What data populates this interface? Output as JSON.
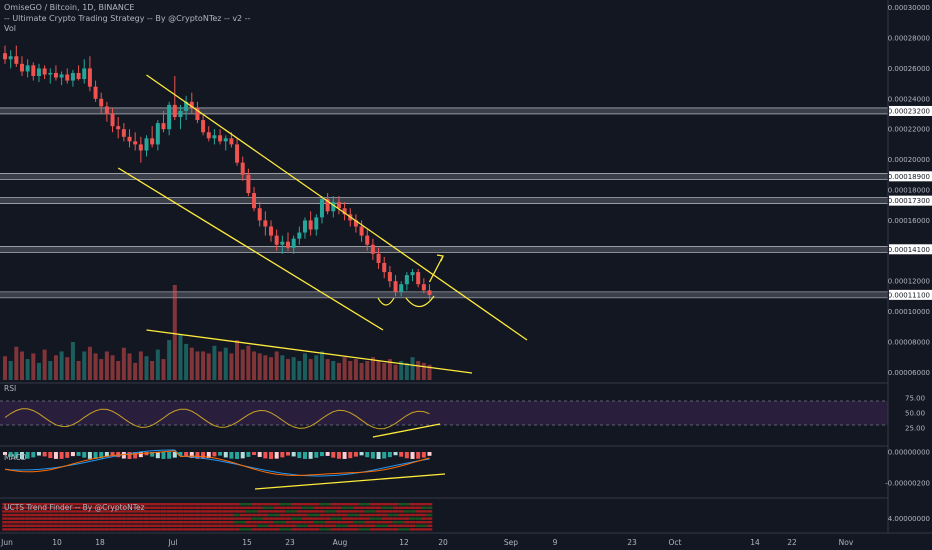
{
  "header": {
    "title": "OmiseGO / Bitcoin, 1D, BINANCE",
    "strategy": "-- Ultimate Crypto Trading Strategy -- By @CryptoNTez -- v2 --",
    "vol": "Vol"
  },
  "panels": {
    "rsi": "RSI",
    "macd": "MACD",
    "trend": "UCTS Trend Finder -- By @CryptoNTez"
  },
  "colors": {
    "background": "#131722",
    "up": "#26a69a",
    "down": "#ef5350",
    "trendline": "#ffeb3b",
    "level_band": "#5d606b",
    "rsi_fill": "#2a1e3d"
  },
  "chart_data": {
    "type": "candlestick",
    "symbol": "OmiseGO / Bitcoin",
    "interval": "1D",
    "exchange": "BINANCE",
    "price_axis": {
      "ticks": [
        "0.00030000",
        "0.00028000",
        "0.00026000",
        "0.00024000",
        "0.00022000",
        "0.00020000",
        "0.00018000",
        "0.00016000",
        "0.00012000",
        "0.00010000",
        "0.00008000",
        "0.00006000"
      ],
      "ylim": [
        5.5e-05,
        0.000305
      ]
    },
    "level_labels": [
      "0.00023200",
      "0.00018900",
      "0.00017300",
      "0.00014100",
      "0.00011100"
    ],
    "levels": [
      0.000232,
      0.000189,
      0.000173,
      0.000141,
      0.000111
    ],
    "x_ticks": [
      "Jun",
      "10",
      "18",
      "Jul",
      "15",
      "23",
      "Aug",
      "12",
      "20",
      "Sep",
      "9",
      "23",
      "Oct",
      "14",
      "22",
      "Nov"
    ],
    "rsi": {
      "ticks": [
        "75.00",
        "50.00",
        "25.00"
      ],
      "upper": 70,
      "lower": 30
    },
    "macd": {
      "ticks": [
        "0.00000000",
        "-0.00000200"
      ]
    },
    "trend": {
      "ticks": [
        "4.00000000"
      ]
    },
    "candles": [
      [
        0.00027,
        0.000275,
        0.000263,
        0.000266
      ],
      [
        0.000266,
        0.000272,
        0.00026,
        0.000268
      ],
      [
        0.000268,
        0.000275,
        0.000261,
        0.000263
      ],
      [
        0.000263,
        0.000268,
        0.000255,
        0.000258
      ],
      [
        0.000258,
        0.000266,
        0.000254,
        0.000262
      ],
      [
        0.000262,
        0.000264,
        0.000252,
        0.000255
      ],
      [
        0.000255,
        0.000263,
        0.000251,
        0.00026
      ],
      [
        0.00026,
        0.000262,
        0.000253,
        0.000256
      ],
      [
        0.000256,
        0.00026,
        0.00025,
        0.000257
      ],
      [
        0.000257,
        0.000262,
        0.000252,
        0.000254
      ],
      [
        0.000254,
        0.000258,
        0.000249,
        0.000256
      ],
      [
        0.000256,
        0.00026,
        0.00025,
        0.000252
      ],
      [
        0.000252,
        0.000259,
        0.000248,
        0.000257
      ],
      [
        0.000257,
        0.000262,
        0.000252,
        0.000253
      ],
      [
        0.000253,
        0.000266,
        0.00025,
        0.00026
      ],
      [
        0.00026,
        0.000268,
        0.000245,
        0.000248
      ],
      [
        0.000248,
        0.000252,
        0.000238,
        0.00024
      ],
      [
        0.00024,
        0.000244,
        0.00023,
        0.000235
      ],
      [
        0.000235,
        0.000238,
        0.000225,
        0.00023
      ],
      [
        0.00023,
        0.000234,
        0.000218,
        0.000222
      ],
      [
        0.000222,
        0.000228,
        0.000214,
        0.00022
      ],
      [
        0.00022,
        0.000224,
        0.000212,
        0.000215
      ],
      [
        0.000215,
        0.00022,
        0.000208,
        0.000212
      ],
      [
        0.000212,
        0.000218,
        0.000206,
        0.00021
      ],
      [
        0.00021,
        0.000215,
        0.000198,
        0.000206
      ],
      [
        0.000206,
        0.000216,
        0.000202,
        0.000214
      ],
      [
        0.000214,
        0.000222,
        0.000208,
        0.00021
      ],
      [
        0.00021,
        0.000226,
        0.000206,
        0.000224
      ],
      [
        0.000224,
        0.000232,
        0.000218,
        0.00022
      ],
      [
        0.00022,
        0.000238,
        0.000216,
        0.000236
      ],
      [
        0.000236,
        0.000255,
        0.000226,
        0.000228
      ],
      [
        0.000228,
        0.000236,
        0.00022,
        0.000232
      ],
      [
        0.000232,
        0.000242,
        0.000226,
        0.000238
      ],
      [
        0.000238,
        0.000244,
        0.00023,
        0.000234
      ],
      [
        0.000234,
        0.000238,
        0.000224,
        0.000226
      ],
      [
        0.000226,
        0.00023,
        0.000216,
        0.000218
      ],
      [
        0.000218,
        0.000222,
        0.000212,
        0.000214
      ],
      [
        0.000214,
        0.00022,
        0.00021,
        0.000216
      ],
      [
        0.000216,
        0.00022,
        0.00021,
        0.000212
      ],
      [
        0.000212,
        0.000216,
        0.000206,
        0.000214
      ],
      [
        0.000214,
        0.000218,
        0.000208,
        0.00021
      ],
      [
        0.00021,
        0.000214,
        0.000196,
        0.000198
      ],
      [
        0.000198,
        0.000202,
        0.000186,
        0.00019
      ],
      [
        0.00019,
        0.000194,
        0.000176,
        0.000178
      ],
      [
        0.000178,
        0.000182,
        0.000166,
        0.000168
      ],
      [
        0.000168,
        0.000172,
        0.000156,
        0.00016
      ],
      [
        0.00016,
        0.000166,
        0.00015,
        0.000156
      ],
      [
        0.000156,
        0.00016,
        0.000146,
        0.00015
      ],
      [
        0.00015,
        0.000154,
        0.00014,
        0.000144
      ],
      [
        0.000144,
        0.00015,
        0.000138,
        0.000146
      ],
      [
        0.000146,
        0.000152,
        0.00014,
        0.000142
      ],
      [
        0.000142,
        0.00015,
        0.000138,
        0.000148
      ],
      [
        0.000148,
        0.000156,
        0.000144,
        0.000152
      ],
      [
        0.000152,
        0.000162,
        0.000148,
        0.00016
      ],
      [
        0.00016,
        0.000166,
        0.00015,
        0.000154
      ],
      [
        0.000154,
        0.000164,
        0.00015,
        0.000162
      ],
      [
        0.000162,
        0.000176,
        0.000158,
        0.000174
      ],
      [
        0.000174,
        0.000178,
        0.000164,
        0.000166
      ],
      [
        0.000166,
        0.000176,
        0.000162,
        0.000172
      ],
      [
        0.000172,
        0.000176,
        0.000164,
        0.000168
      ],
      [
        0.000168,
        0.000172,
        0.00016,
        0.000164
      ],
      [
        0.000164,
        0.000168,
        0.000156,
        0.00016
      ],
      [
        0.00016,
        0.000164,
        0.000152,
        0.000156
      ],
      [
        0.000156,
        0.00016,
        0.000146,
        0.00015
      ],
      [
        0.00015,
        0.000154,
        0.00014,
        0.000144
      ],
      [
        0.000144,
        0.000148,
        0.000134,
        0.000138
      ],
      [
        0.000138,
        0.000142,
        0.000128,
        0.000132
      ],
      [
        0.000132,
        0.000136,
        0.000122,
        0.000126
      ],
      [
        0.000126,
        0.00013,
        0.000116,
        0.00012
      ],
      [
        0.00012,
        0.000124,
        0.00011,
        0.000113
      ],
      [
        0.000113,
        0.00012,
        0.00011,
        0.000118
      ],
      [
        0.000118,
        0.000126,
        0.000114,
        0.000124
      ],
      [
        0.000124,
        0.000128,
        0.00012,
        0.000126
      ],
      [
        0.000126,
        0.000128,
        0.000116,
        0.000118
      ],
      [
        0.000118,
        0.000122,
        0.000112,
        0.000114
      ],
      [
        0.000114,
        0.000118,
        0.000108,
        0.000111
      ]
    ],
    "volume": [
      0.25,
      0.2,
      0.35,
      0.3,
      0.22,
      0.28,
      0.18,
      0.32,
      0.2,
      0.26,
      0.3,
      0.24,
      0.4,
      0.2,
      0.3,
      0.35,
      0.28,
      0.22,
      0.3,
      0.26,
      0.2,
      0.34,
      0.28,
      0.18,
      0.3,
      0.25,
      0.2,
      0.32,
      0.22,
      0.42,
      1.0,
      0.48,
      0.38,
      0.34,
      0.3,
      0.3,
      0.28,
      0.36,
      0.3,
      0.34,
      0.28,
      0.42,
      0.32,
      0.36,
      0.3,
      0.28,
      0.26,
      0.24,
      0.3,
      0.26,
      0.22,
      0.24,
      0.2,
      0.28,
      0.22,
      0.26,
      0.3,
      0.22,
      0.2,
      0.18,
      0.24,
      0.2,
      0.22,
      0.18,
      0.2,
      0.24,
      0.2,
      0.18,
      0.22,
      0.16,
      0.2,
      0.18,
      0.24,
      0.2,
      0.18,
      0.16
    ]
  }
}
